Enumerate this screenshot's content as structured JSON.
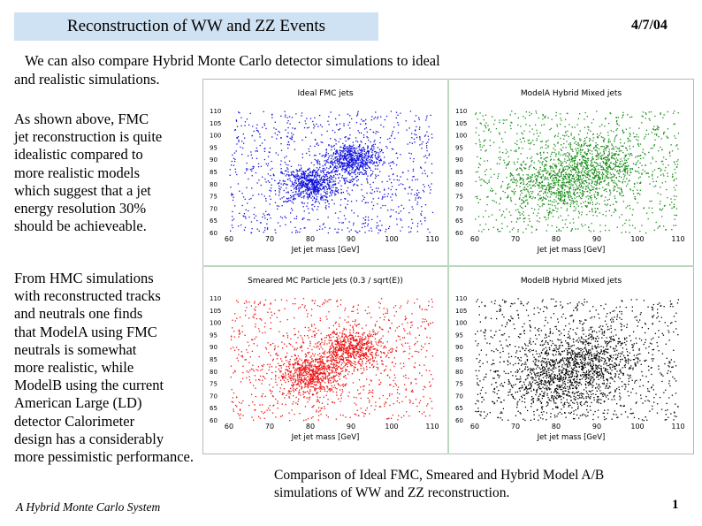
{
  "header": {
    "title": "Reconstruction of WW and ZZ Events",
    "date": "4/7/04"
  },
  "intro": {
    "line1": "We can also compare Hybrid Monte Carlo detector simulations to ideal",
    "line2": "and realistic simulations."
  },
  "paragraph1": [
    "As shown above, FMC",
    "jet reconstruction is quite",
    "idealistic compared to",
    "more realistic models",
    "which suggest that a jet",
    "energy resolution 30%",
    "should be achieveable."
  ],
  "paragraph2": [
    "From HMC simulations",
    "with reconstructed tracks",
    "and neutrals one finds",
    "that ModelA using FMC",
    "neutrals is somewhat",
    "more realistic, while",
    "ModelB using the current",
    "American Large (LD)",
    "detector Calorimeter",
    "design has a considerably",
    "more pessimistic performance."
  ],
  "caption": {
    "line1": "Comparison of Ideal FMC, Smeared and Hybrid Model A/B",
    "line2": "simulations of WW and ZZ reconstruction."
  },
  "footer": {
    "text": "A Hybrid Monte Carlo System",
    "page": "1"
  },
  "chart_data": [
    {
      "type": "scatter",
      "title": "Ideal FMC jets",
      "xlabel": "Jet  jet mass [GeV]",
      "color": "#1010dd",
      "xlim": [
        60,
        110
      ],
      "ylim": [
        60,
        110
      ],
      "xticks": [
        "60",
        "70",
        "80",
        "90",
        "100",
        "110"
      ],
      "yticks": [
        "110",
        "105",
        "100",
        "95",
        "90",
        "85",
        "80",
        "75",
        "70",
        "65",
        "60"
      ],
      "clusters": [
        {
          "x": 80,
          "y": 80,
          "sigma": 3.5
        },
        {
          "x": 90,
          "y": 90,
          "sigma": 3.5
        }
      ]
    },
    {
      "type": "scatter",
      "title": "ModelA Hybrid Mixed jets",
      "xlabel": "Jet  jet mass [GeV]",
      "color": "#138a13",
      "xlim": [
        60,
        110
      ],
      "ylim": [
        60,
        110
      ],
      "xticks": [
        "60",
        "70",
        "80",
        "90",
        "100",
        "110"
      ],
      "yticks": [
        "110",
        "105",
        "100",
        "95",
        "90",
        "85",
        "80",
        "75",
        "70",
        "65",
        "60"
      ],
      "clusters": [
        {
          "x": 80,
          "y": 80,
          "sigma": 6
        },
        {
          "x": 90,
          "y": 88,
          "sigma": 6
        }
      ]
    },
    {
      "type": "scatter",
      "title": "Smeared MC Particle Jets  (0.3 / sqrt(E))",
      "xlabel": "Jet  jet mass [GeV]",
      "color": "#ee1111",
      "xlim": [
        60,
        110
      ],
      "ylim": [
        60,
        110
      ],
      "xticks": [
        "60",
        "70",
        "80",
        "90",
        "100",
        "110"
      ],
      "yticks": [
        "110",
        "105",
        "100",
        "95",
        "90",
        "85",
        "80",
        "75",
        "70",
        "65",
        "60"
      ],
      "clusters": [
        {
          "x": 80,
          "y": 79,
          "sigma": 4
        },
        {
          "x": 90,
          "y": 89,
          "sigma": 4
        }
      ]
    },
    {
      "type": "scatter",
      "title": "ModelB Hybrid Mixed jets",
      "xlabel": "Jet  jet mass [GeV]",
      "color": "#000000",
      "xlim": [
        60,
        110
      ],
      "ylim": [
        60,
        110
      ],
      "xticks": [
        "60",
        "70",
        "80",
        "90",
        "100",
        "110"
      ],
      "yticks": [
        "110",
        "105",
        "100",
        "95",
        "90",
        "85",
        "80",
        "75",
        "70",
        "65",
        "60"
      ],
      "clusters": [
        {
          "x": 80,
          "y": 76,
          "sigma": 6.5
        },
        {
          "x": 88,
          "y": 85,
          "sigma": 6.5
        }
      ]
    }
  ]
}
